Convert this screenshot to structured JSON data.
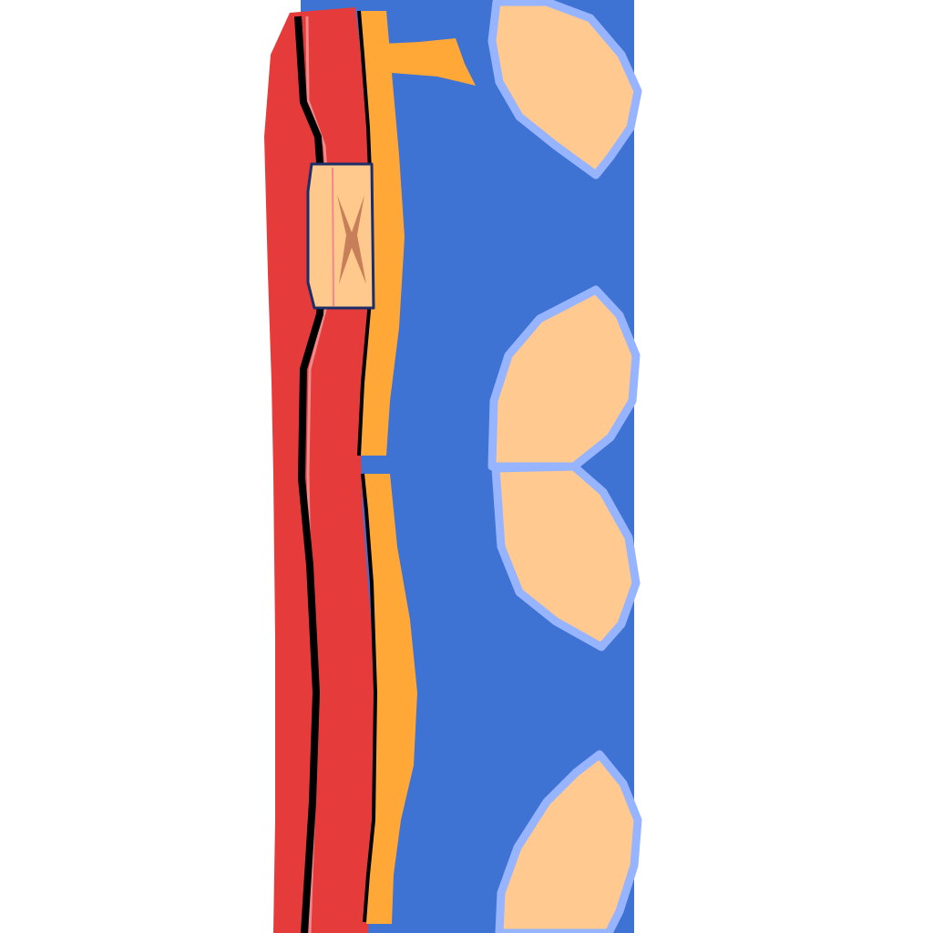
{
  "scene": {
    "background_color": "#ffffff",
    "panel_color": "#3e72d3",
    "red_strip_color": "#e63b3b",
    "orange_strip_color": "#ffa737",
    "black_line_color": "#000000",
    "pink_highlight_color": "#f08a8a",
    "window_fill_color": "#ffc98d",
    "window_frame_color": "#1c2e66",
    "window_mark_color": "#c77f59",
    "leaf_fill_color": "#ffc98f",
    "leaf_outline_color": "#96b4ff",
    "leaf_count": 4,
    "icons": [
      "red-strip-shape",
      "orange-strip-shape",
      "flag-shape",
      "window-shape",
      "leaf-shape"
    ]
  }
}
